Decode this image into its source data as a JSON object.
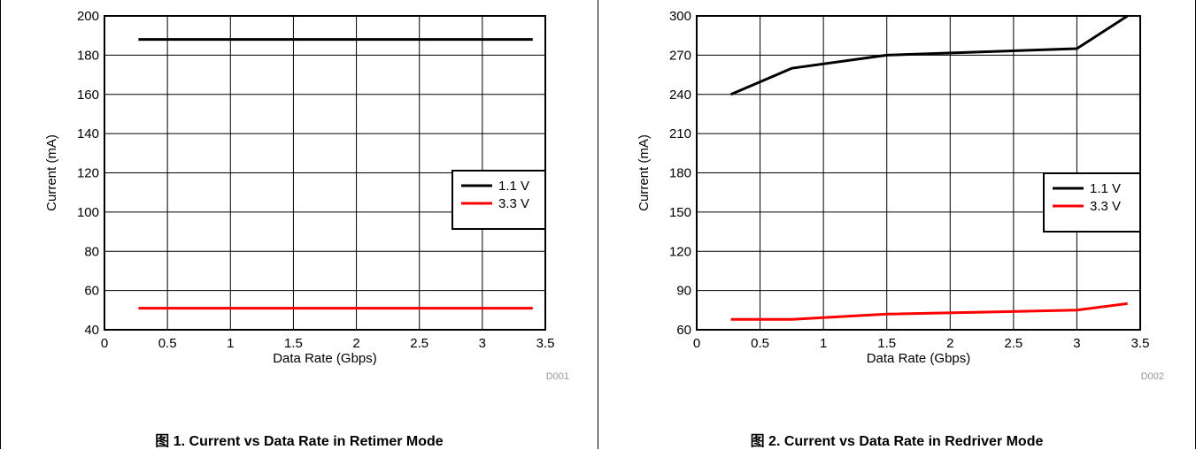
{
  "chart_data": [
    {
      "type": "line",
      "caption": "图 1. Current vs Data Rate in Retimer Mode",
      "code": "D001",
      "xlabel": "Data Rate (Gbps)",
      "ylabel": "Current (mA)",
      "xlim": [
        0,
        3.5
      ],
      "ylim": [
        40,
        200
      ],
      "xticks": [
        "0",
        "0.5",
        "1",
        "1.5",
        "2",
        "2.5",
        "3",
        "3.5"
      ],
      "yticks": [
        "40",
        "60",
        "80",
        "100",
        "120",
        "140",
        "160",
        "180",
        "200"
      ],
      "grid": true,
      "legend_position": "right",
      "series": [
        {
          "name": "1.1 V",
          "color": "#000000",
          "x": [
            0.27,
            3.4
          ],
          "y": [
            188,
            188
          ]
        },
        {
          "name": "3.3 V",
          "color": "#ff0000",
          "x": [
            0.27,
            3.4
          ],
          "y": [
            51,
            51
          ]
        }
      ]
    },
    {
      "type": "line",
      "caption": "图 2. Current vs Data Rate in Redriver Mode",
      "code": "D002",
      "xlabel": "Data Rate (Gbps)",
      "ylabel": "Current (mA)",
      "xlim": [
        0,
        3.5
      ],
      "ylim": [
        60,
        300
      ],
      "xticks": [
        "0",
        "0.5",
        "1",
        "1.5",
        "2",
        "2.5",
        "3",
        "3.5"
      ],
      "yticks": [
        "60",
        "90",
        "120",
        "150",
        "180",
        "210",
        "240",
        "270",
        "300"
      ],
      "grid": true,
      "legend_position": "right",
      "series": [
        {
          "name": "1.1 V",
          "color": "#000000",
          "x": [
            0.27,
            0.75,
            1.5,
            3.0,
            3.4
          ],
          "y": [
            240,
            260,
            270,
            275,
            300
          ]
        },
        {
          "name": "3.3 V",
          "color": "#ff0000",
          "x": [
            0.27,
            0.75,
            1.5,
            3.0,
            3.4
          ],
          "y": [
            68,
            68,
            72,
            75,
            80
          ]
        }
      ]
    }
  ]
}
